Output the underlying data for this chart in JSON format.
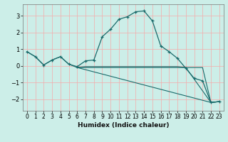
{
  "xlabel": "Humidex (Indice chaleur)",
  "bg_color": "#cceee8",
  "grid_color": "#f5aaaa",
  "line_color": "#1a6b6b",
  "xlim": [
    -0.5,
    23.5
  ],
  "ylim": [
    -2.7,
    3.7
  ],
  "yticks": [
    -2,
    -1,
    0,
    1,
    2,
    3
  ],
  "xticks": [
    0,
    1,
    2,
    3,
    4,
    5,
    6,
    7,
    8,
    9,
    10,
    11,
    12,
    13,
    14,
    15,
    16,
    17,
    18,
    19,
    20,
    21,
    22,
    23
  ],
  "series1_x": [
    0,
    1,
    2,
    3,
    4,
    5,
    6,
    7,
    8,
    9,
    10,
    11,
    12,
    13,
    14,
    15,
    16,
    17,
    18,
    19,
    20,
    21,
    22,
    23
  ],
  "series1_y": [
    0.85,
    0.55,
    0.05,
    0.35,
    0.55,
    0.1,
    -0.05,
    0.3,
    0.35,
    1.75,
    2.2,
    2.8,
    2.95,
    3.25,
    3.3,
    2.7,
    1.2,
    0.85,
    0.45,
    -0.15,
    -0.75,
    -0.9,
    -2.2,
    -2.15
  ],
  "series2_x": [
    0,
    1,
    2,
    3,
    4,
    5,
    6,
    7,
    8,
    9,
    10,
    11,
    12,
    13,
    14,
    15,
    16,
    17,
    18,
    19,
    20,
    21,
    22,
    23
  ],
  "series2_y": [
    0.85,
    0.55,
    0.05,
    0.35,
    0.55,
    0.1,
    -0.1,
    -0.05,
    -0.05,
    -0.05,
    -0.05,
    -0.05,
    -0.05,
    -0.05,
    -0.05,
    -0.05,
    -0.05,
    -0.05,
    -0.05,
    -0.1,
    -0.1,
    -0.1,
    -2.2,
    -2.15
  ],
  "series3_x": [
    6,
    22,
    23
  ],
  "series3_y": [
    -0.1,
    -2.2,
    -2.15
  ],
  "series4_x": [
    6,
    19,
    22,
    23
  ],
  "series4_y": [
    -0.1,
    -0.1,
    -2.2,
    -2.15
  ]
}
